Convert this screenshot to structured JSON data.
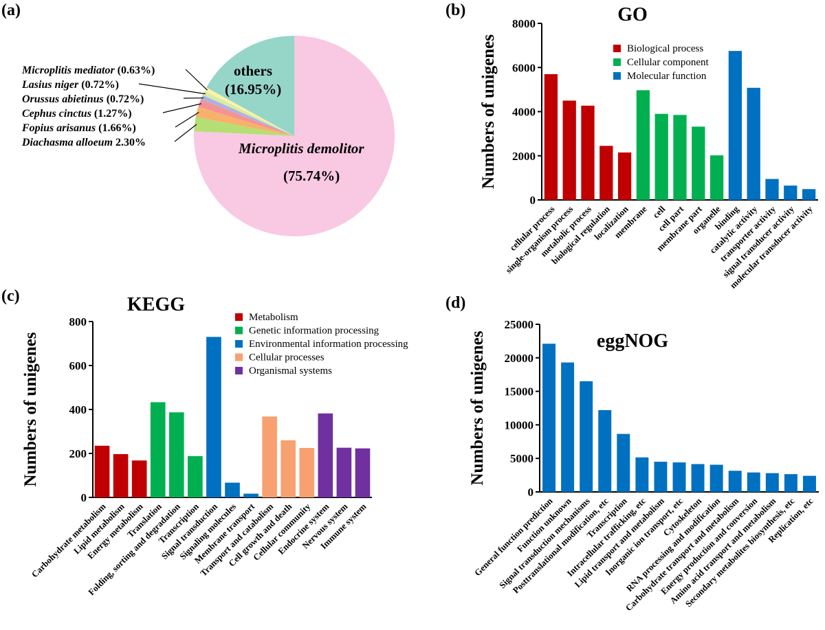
{
  "panels": {
    "a": "(a)",
    "b": "(b)",
    "c": "(c)",
    "d": "(d)"
  },
  "chart_data": [
    {
      "id": "a",
      "type": "pie",
      "title": "",
      "slices": [
        {
          "label": "Microplitis demolitor",
          "pct_text": "(75.74%)",
          "value": 75.74,
          "color": "#f9c8e3"
        },
        {
          "label": "Diachasma alloeum",
          "pct_text": "2.30%",
          "value": 2.3,
          "color": "#b5df74"
        },
        {
          "label": "Fopius arisanus",
          "pct_text": "(1.66%)",
          "value": 1.66,
          "color": "#f8b16a"
        },
        {
          "label": "Cephus cinctus",
          "pct_text": "(1.27%)",
          "value": 1.27,
          "color": "#f39396"
        },
        {
          "label": "Orussus abietinus",
          "pct_text": "(0.72%)",
          "value": 0.72,
          "color": "#a9b4e2"
        },
        {
          "label": "Lasius niger",
          "pct_text": "(0.72%)",
          "value": 0.72,
          "color": "#d8eaa6"
        },
        {
          "label": "Microplitis mediator",
          "pct_text": "(0.63%)",
          "value": 0.63,
          "color": "#fbf3a8"
        },
        {
          "label": "others",
          "pct_text": "(16.95%)",
          "value": 16.95,
          "color": "#95d6c9"
        }
      ]
    },
    {
      "id": "b",
      "type": "bar",
      "title": "GO",
      "xlabel": "",
      "ylabel": "Numbers of unigenes",
      "ylim": [
        0,
        8000
      ],
      "yticks": [
        0,
        2000,
        4000,
        6000,
        8000
      ],
      "legend": {
        "placement": "top-center",
        "entries": [
          {
            "label": "Biological process",
            "color": "#c00000"
          },
          {
            "label": "Cellular component",
            "color": "#00b050"
          },
          {
            "label": "Molecular function",
            "color": "#0070c0"
          }
        ]
      },
      "categories": [
        "cellular process",
        "single-organism process",
        "metabolic process",
        "biological regulation",
        "localization",
        "membrane",
        "cell",
        "cell part",
        "membrane part",
        "organelle",
        "binding",
        "catalytic activity",
        "transporter activity",
        "signal transducer activity",
        "molecular transducer activity"
      ],
      "values": [
        5700,
        4500,
        4270,
        2450,
        2150,
        4970,
        3900,
        3850,
        3320,
        2020,
        6750,
        5080,
        950,
        650,
        490
      ],
      "groups": [
        0,
        0,
        0,
        0,
        0,
        1,
        1,
        1,
        1,
        1,
        2,
        2,
        2,
        2,
        2
      ]
    },
    {
      "id": "c",
      "type": "bar",
      "title": "KEGG",
      "xlabel": "",
      "ylabel": "Numbers of unigenes",
      "ylim": [
        0,
        800
      ],
      "yticks": [
        0,
        200,
        400,
        600,
        800
      ],
      "legend": {
        "placement": "top-right",
        "entries": [
          {
            "label": "Metabolism",
            "color": "#c00000"
          },
          {
            "label": "Genetic information processing",
            "color": "#00b050"
          },
          {
            "label": "Environmental information processing",
            "color": "#0070c0"
          },
          {
            "label": "Cellular processes",
            "color": "#f9a070"
          },
          {
            "label": "Organismal systems",
            "color": "#7030a0"
          }
        ]
      },
      "categories": [
        "Carbohydrate metabolism",
        "Lipid metabolism",
        "Energy metabolism",
        "Translation",
        "Folding, sorting and degradation",
        "Transcription",
        "Signal transduction",
        "Signaling molecules",
        "Membrane transport",
        "Transport and catabolism",
        "Cell growth and death",
        "Cellular community",
        "Endocrine system",
        "Nervous system",
        "Immune system"
      ],
      "values": [
        235,
        197,
        168,
        433,
        387,
        188,
        730,
        67,
        17,
        368,
        260,
        225,
        382,
        226,
        223
      ],
      "groups": [
        0,
        0,
        0,
        1,
        1,
        1,
        2,
        2,
        2,
        3,
        3,
        3,
        4,
        4,
        4
      ]
    },
    {
      "id": "d",
      "type": "bar",
      "title": "eggNOG",
      "xlabel": "",
      "ylabel": "Numbers of unigenes",
      "ylim": [
        0,
        25000
      ],
      "yticks": [
        0,
        5000,
        10000,
        15000,
        20000,
        25000
      ],
      "bar_color": "#0070c0",
      "categories": [
        "General function prediction",
        "Function unknown",
        "Signal transduction mechanisms",
        "Posttranslational modification, etc",
        "Transcription",
        "Intracellular trafficking, etc",
        "Lipid transport and metabolism",
        "Inorganic ion transport, etc",
        "Cytoskeleton",
        "RNA processing and modification",
        "Carbohydrate transport and metabolism",
        "Energy production and conversion",
        "Amino acid transport and metabolism",
        "Secondary metabolites biosynthesis, etc",
        "Replication, etc"
      ],
      "values": [
        22100,
        19300,
        16500,
        12200,
        8650,
        5150,
        4500,
        4400,
        4150,
        4050,
        3150,
        2900,
        2800,
        2650,
        2400
      ]
    }
  ]
}
